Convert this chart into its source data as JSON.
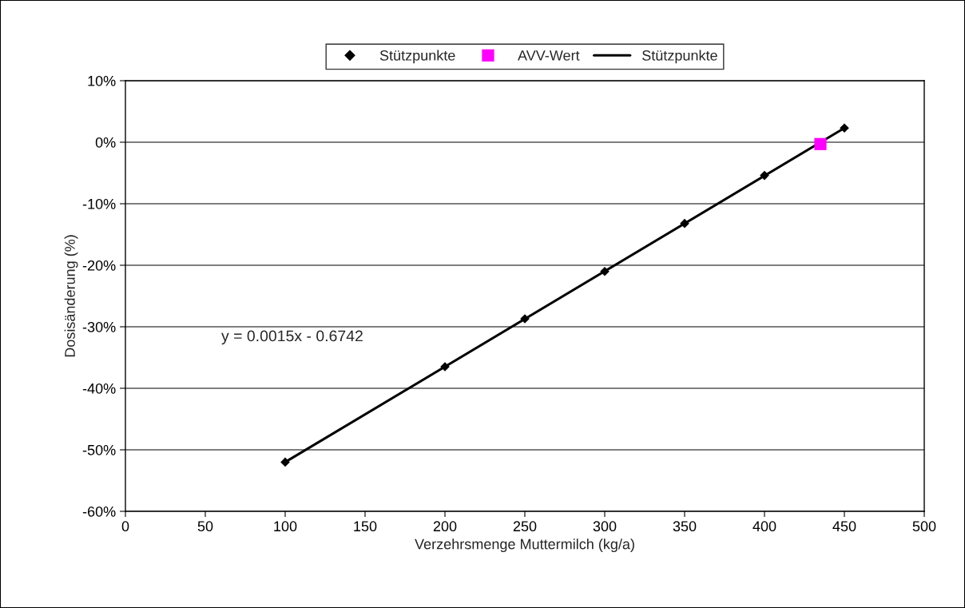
{
  "chart_data": {
    "type": "scatter",
    "xlabel": "Verzehrsmenge Muttermilch (kg/a)",
    "ylabel": "Dosisänderung (%)",
    "annotations": [
      "y = 0.0015x - 0.6742"
    ],
    "series": [
      {
        "name": "Stützpunkte",
        "color": "#000000",
        "marker": "diamond",
        "x": [
          100,
          200,
          250,
          300,
          350,
          400,
          450
        ],
        "values": [
          -52,
          -36.5,
          -28.7,
          -21,
          -13.2,
          -5.4,
          2.3
        ]
      },
      {
        "name": "AVV-Wert",
        "color": "#ff00ff",
        "marker": "square",
        "x": [
          435
        ],
        "values": [
          -0.3
        ]
      },
      {
        "name": "Stützpunkte",
        "type": "line",
        "color": "#000000",
        "marker": "none",
        "line_style": "solid",
        "x": [
          100,
          450
        ],
        "values": [
          -52,
          2.3
        ]
      }
    ],
    "xlim": [
      0,
      500
    ],
    "xticks": [
      0,
      50,
      100,
      150,
      200,
      250,
      300,
      350,
      400,
      450,
      500
    ],
    "ylim": [
      -60,
      10
    ],
    "yticks": [
      {
        "value": -60,
        "label": "-60%"
      },
      {
        "value": -50,
        "label": "-50%"
      },
      {
        "value": -40,
        "label": "-40%"
      },
      {
        "value": -30,
        "label": "-30%"
      },
      {
        "value": -20,
        "label": "-20%"
      },
      {
        "value": -10,
        "label": "-10%"
      },
      {
        "value": 0,
        "label": "0%"
      },
      {
        "value": 10,
        "label": "10%"
      }
    ],
    "grid": "y",
    "legend": "top"
  }
}
